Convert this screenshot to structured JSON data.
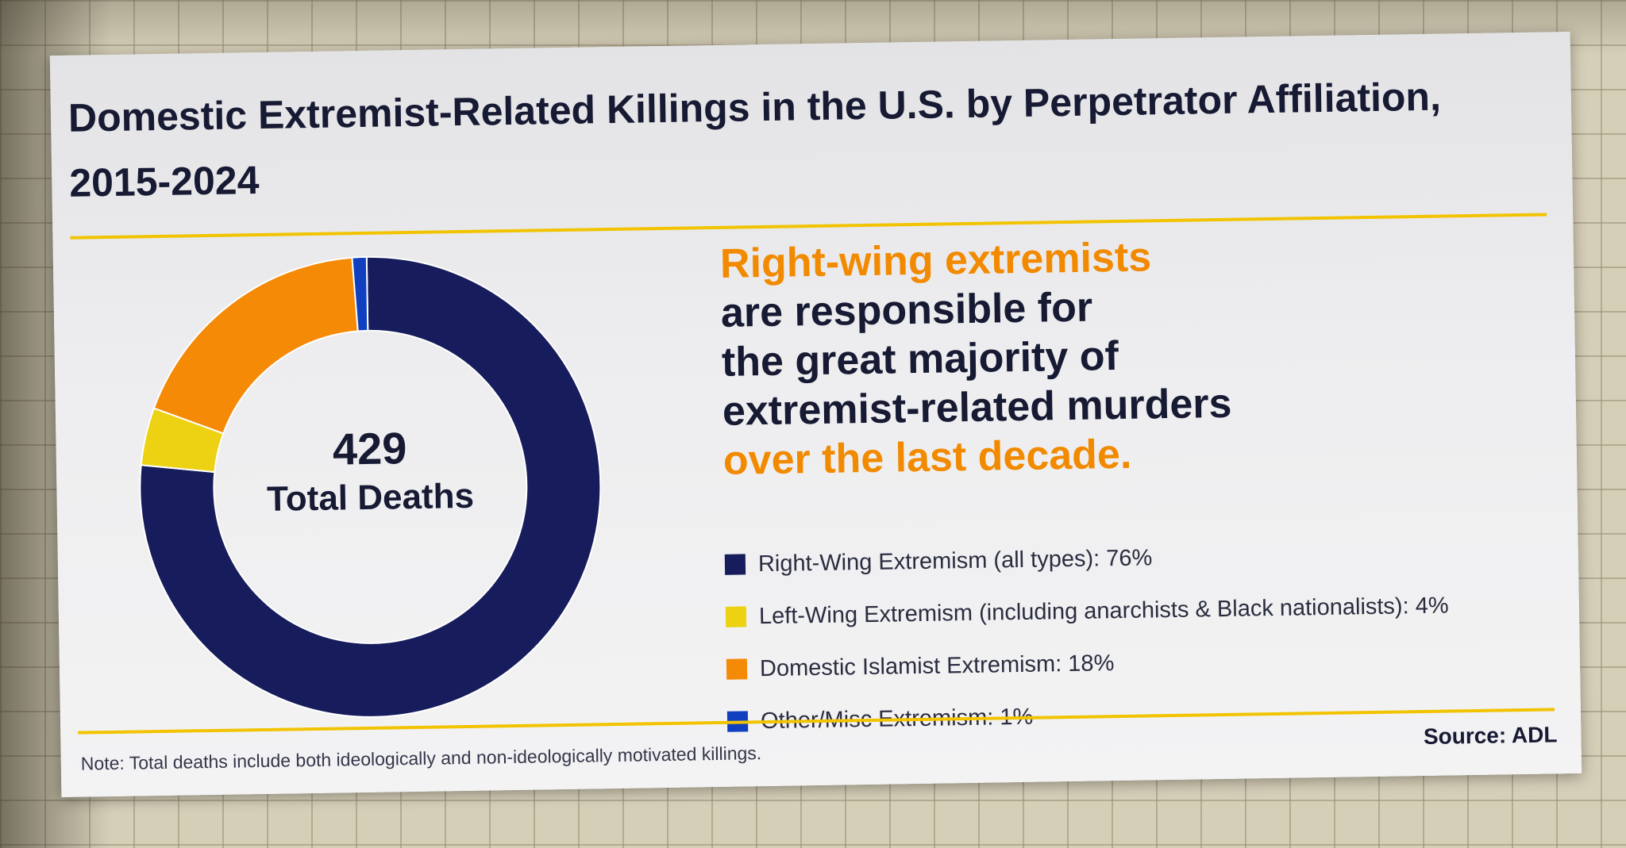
{
  "title": "Domestic Extremist-Related Killings in the U.S. by Perpetrator Affiliation, 2015-2024",
  "total": {
    "value": "429",
    "label": "Total Deaths"
  },
  "headline": {
    "line1_highlight": "Right-wing extremists",
    "line2": "are responsible for",
    "line3": "the great majority of",
    "line4": "extremist-related murders",
    "line5_highlight": "over the last decade."
  },
  "note": "Note: Total deaths include both ideologically and non-ideologically motivated killings.",
  "source": "Source: ADL",
  "colors": {
    "navy": "#161c5c",
    "yellow": "#ecd213",
    "orange": "#f58a06",
    "blue": "#1040c0",
    "accent_rule": "#f2c300",
    "headline_orange": "#f28a00"
  },
  "chart_data": {
    "type": "pie",
    "donut": true,
    "title": "Domestic Extremist-Related Killings in the U.S. by Perpetrator Affiliation, 2015-2024",
    "legend_position": "right",
    "slices": [
      {
        "label": "Right-Wing Extremism (all types): 76%",
        "value": 76,
        "color": "#161c5c"
      },
      {
        "label": "Left-Wing Extremism (including anarchists & Black nationalists): 4%",
        "value": 4,
        "color": "#ecd213"
      },
      {
        "label": "Domestic Islamist Extremism: 18%",
        "value": 18,
        "color": "#f58a06"
      },
      {
        "label": "Other/Misc Extremism: 1%",
        "value": 1,
        "color": "#1040c0"
      }
    ]
  }
}
